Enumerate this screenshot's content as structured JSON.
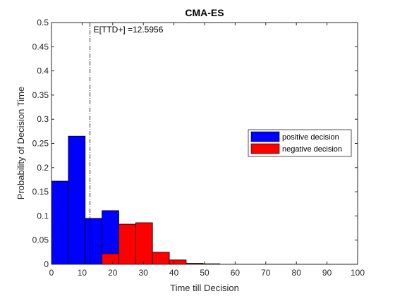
{
  "chart_data": {
    "type": "bar",
    "title": "CMA-ES",
    "xlabel": "Time till Decision",
    "ylabel": "Probability of Decision Time",
    "xlim": [
      0,
      100
    ],
    "ylim": [
      0,
      0.5
    ],
    "xticks": [
      0,
      10,
      20,
      30,
      40,
      50,
      60,
      70,
      80,
      90,
      100
    ],
    "yticks": [
      0,
      0.05,
      0.1,
      0.15,
      0.2,
      0.25,
      0.3,
      0.35,
      0.4,
      0.45,
      0.5
    ],
    "bin_edges": [
      0,
      5.5,
      11,
      16.5,
      22,
      27.5,
      33,
      38.5,
      44,
      49.5,
      55
    ],
    "series": [
      {
        "name": "positive decision",
        "color": "#0000ff",
        "values": [
          0.172,
          0.265,
          0.095,
          0.111,
          0.0,
          0.0,
          0.0,
          0.0,
          0.002,
          0.001
        ]
      },
      {
        "name": "negative decision",
        "color": "#ff0000",
        "values": [
          0.0,
          0.0,
          0.0,
          0.022,
          0.083,
          0.086,
          0.025,
          0.009,
          0.002,
          0.001
        ]
      }
    ],
    "annotation": {
      "x": 12.5956,
      "text": "E[TTD+] =12.5956"
    },
    "legend": {
      "position": "right"
    },
    "grid": false
  }
}
